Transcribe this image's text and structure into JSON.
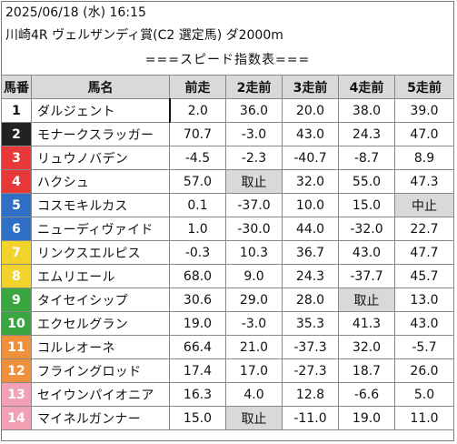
{
  "header": {
    "datetime": "2025/06/18 (水) 16:15",
    "race": "川崎4R ヴェルザンディ賞(C2 選定馬) ダ2000m"
  },
  "table_title": "===スピード指数表===",
  "columns": [
    "馬番",
    "馬名",
    "前走",
    "2走前",
    "3走前",
    "4走前",
    "5走前"
  ],
  "rows": [
    {
      "no": "1",
      "name": "ダルジェント",
      "bg": "#ffffff",
      "fg": "#111111",
      "vals": [
        "2.0",
        "36.0",
        "20.0",
        "38.0",
        "39.0"
      ]
    },
    {
      "no": "2",
      "name": "モナークスラッガー",
      "bg": "#222222",
      "fg": "#ffffff",
      "vals": [
        "70.7",
        "-3.0",
        "43.0",
        "24.3",
        "47.0"
      ]
    },
    {
      "no": "3",
      "name": "リュウノバデン",
      "bg": "#e8393a",
      "fg": "#ffffff",
      "vals": [
        "-4.5",
        "-2.3",
        "-40.7",
        "-8.7",
        "8.9"
      ]
    },
    {
      "no": "4",
      "name": "ハクシュ",
      "bg": "#e8393a",
      "fg": "#ffffff",
      "vals": [
        "57.0",
        "取止",
        "32.0",
        "55.0",
        "47.3"
      ]
    },
    {
      "no": "5",
      "name": "コスモキルカス",
      "bg": "#2f6fc6",
      "fg": "#ffffff",
      "vals": [
        "0.1",
        "-37.0",
        "10.0",
        "15.0",
        "中止"
      ]
    },
    {
      "no": "6",
      "name": "ニューディヴァイド",
      "bg": "#2f6fc6",
      "fg": "#ffffff",
      "vals": [
        "1.0",
        "-30.0",
        "44.0",
        "-32.0",
        "22.7"
      ]
    },
    {
      "no": "7",
      "name": "リンクスエルピス",
      "bg": "#f2d32b",
      "fg": "#ffffff",
      "vals": [
        "-0.3",
        "10.3",
        "36.7",
        "43.0",
        "47.7"
      ]
    },
    {
      "no": "8",
      "name": "エムリエール",
      "bg": "#f2d32b",
      "fg": "#ffffff",
      "vals": [
        "68.0",
        "9.0",
        "24.3",
        "-37.7",
        "45.7"
      ]
    },
    {
      "no": "9",
      "name": "タイセイシップ",
      "bg": "#3aa63f",
      "fg": "#ffffff",
      "vals": [
        "30.6",
        "29.0",
        "28.0",
        "取止",
        "13.0"
      ]
    },
    {
      "no": "10",
      "name": "エクセルグラン",
      "bg": "#3aa63f",
      "fg": "#ffffff",
      "vals": [
        "19.0",
        "-3.0",
        "35.3",
        "41.3",
        "43.0"
      ]
    },
    {
      "no": "11",
      "name": "コルレオーネ",
      "bg": "#f0903a",
      "fg": "#ffffff",
      "vals": [
        "66.4",
        "21.0",
        "-37.3",
        "32.0",
        "-5.7"
      ]
    },
    {
      "no": "12",
      "name": "フライングロッド",
      "bg": "#f0903a",
      "fg": "#ffffff",
      "vals": [
        "17.4",
        "17.0",
        "-27.3",
        "18.7",
        "26.0"
      ]
    },
    {
      "no": "13",
      "name": "セイウンパイオニア",
      "bg": "#f2a0b4",
      "fg": "#ffffff",
      "vals": [
        "16.3",
        "4.0",
        "12.8",
        "-6.6",
        "5.0"
      ]
    },
    {
      "no": "14",
      "name": "マイネルガンナー",
      "bg": "#f2a0b4",
      "fg": "#ffffff",
      "vals": [
        "15.0",
        "取止",
        "-11.0",
        "19.0",
        "11.0"
      ]
    }
  ],
  "missing_markers": [
    "取止",
    "中止"
  ],
  "colors": {
    "header_bg": "#d9d9d9",
    "grid": "#888888",
    "missing_bg": "#d9d9d9"
  }
}
